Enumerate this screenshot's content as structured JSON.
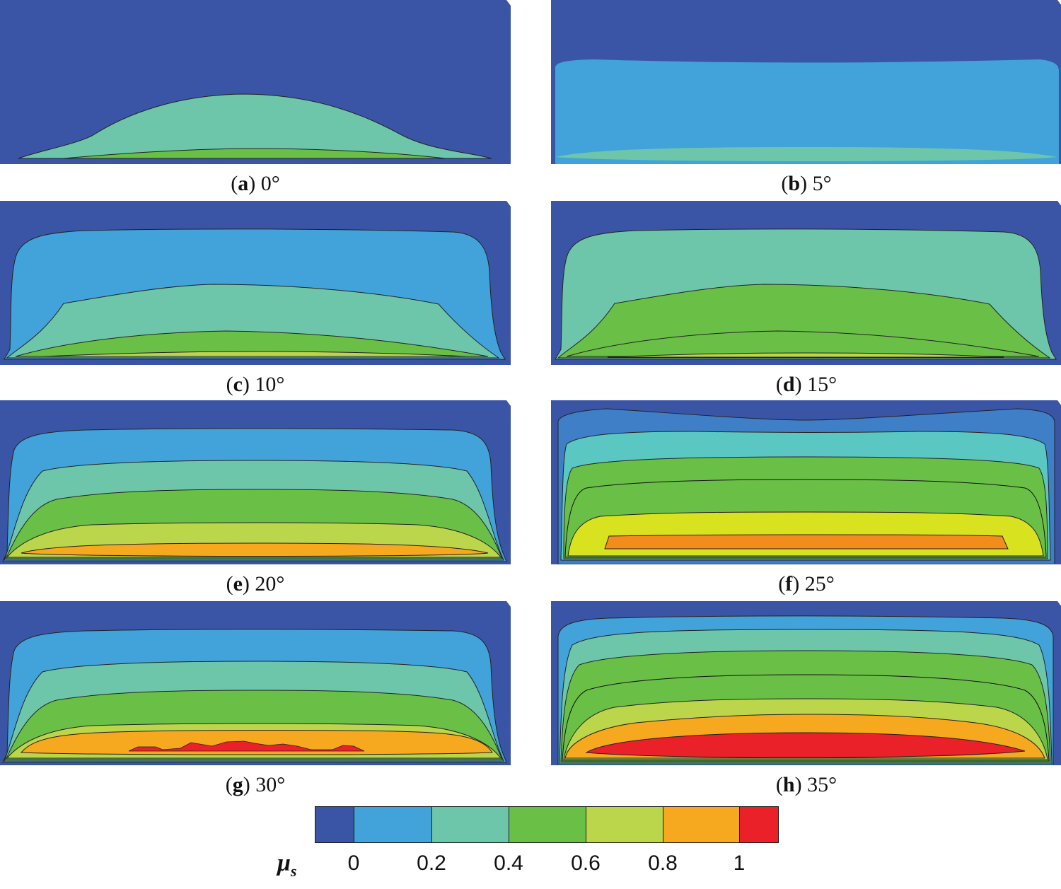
{
  "colors": {
    "c0": "#3b55a6",
    "c1": "#41a3da",
    "c2": "#6dc6aa",
    "c3": "#6abf47",
    "c4": "#bcd64b",
    "c5": "#f6a81f",
    "c6": "#ea2129",
    "c_band_dark": "#3f7fc7",
    "c_band_teal": "#5ac7c2",
    "c_band_yellow": "#d9e21f",
    "c_band_orange": "#f28c1e"
  },
  "panels": [
    {
      "id": "a",
      "letter": "a",
      "angle": "0°"
    },
    {
      "id": "b",
      "letter": "b",
      "angle": "5°"
    },
    {
      "id": "c",
      "letter": "c",
      "angle": "10°"
    },
    {
      "id": "d",
      "letter": "d",
      "angle": "15°"
    },
    {
      "id": "e",
      "letter": "e",
      "angle": "20°"
    },
    {
      "id": "f",
      "letter": "f",
      "angle": "25°"
    },
    {
      "id": "g",
      "letter": "g",
      "angle": "30°"
    },
    {
      "id": "h",
      "letter": "h",
      "angle": "35°"
    }
  ],
  "legend": {
    "symbol": "μ",
    "subscript": "s",
    "ticks": [
      "0",
      "0.2",
      "0.4",
      "0.6",
      "0.8",
      "1"
    ]
  }
}
